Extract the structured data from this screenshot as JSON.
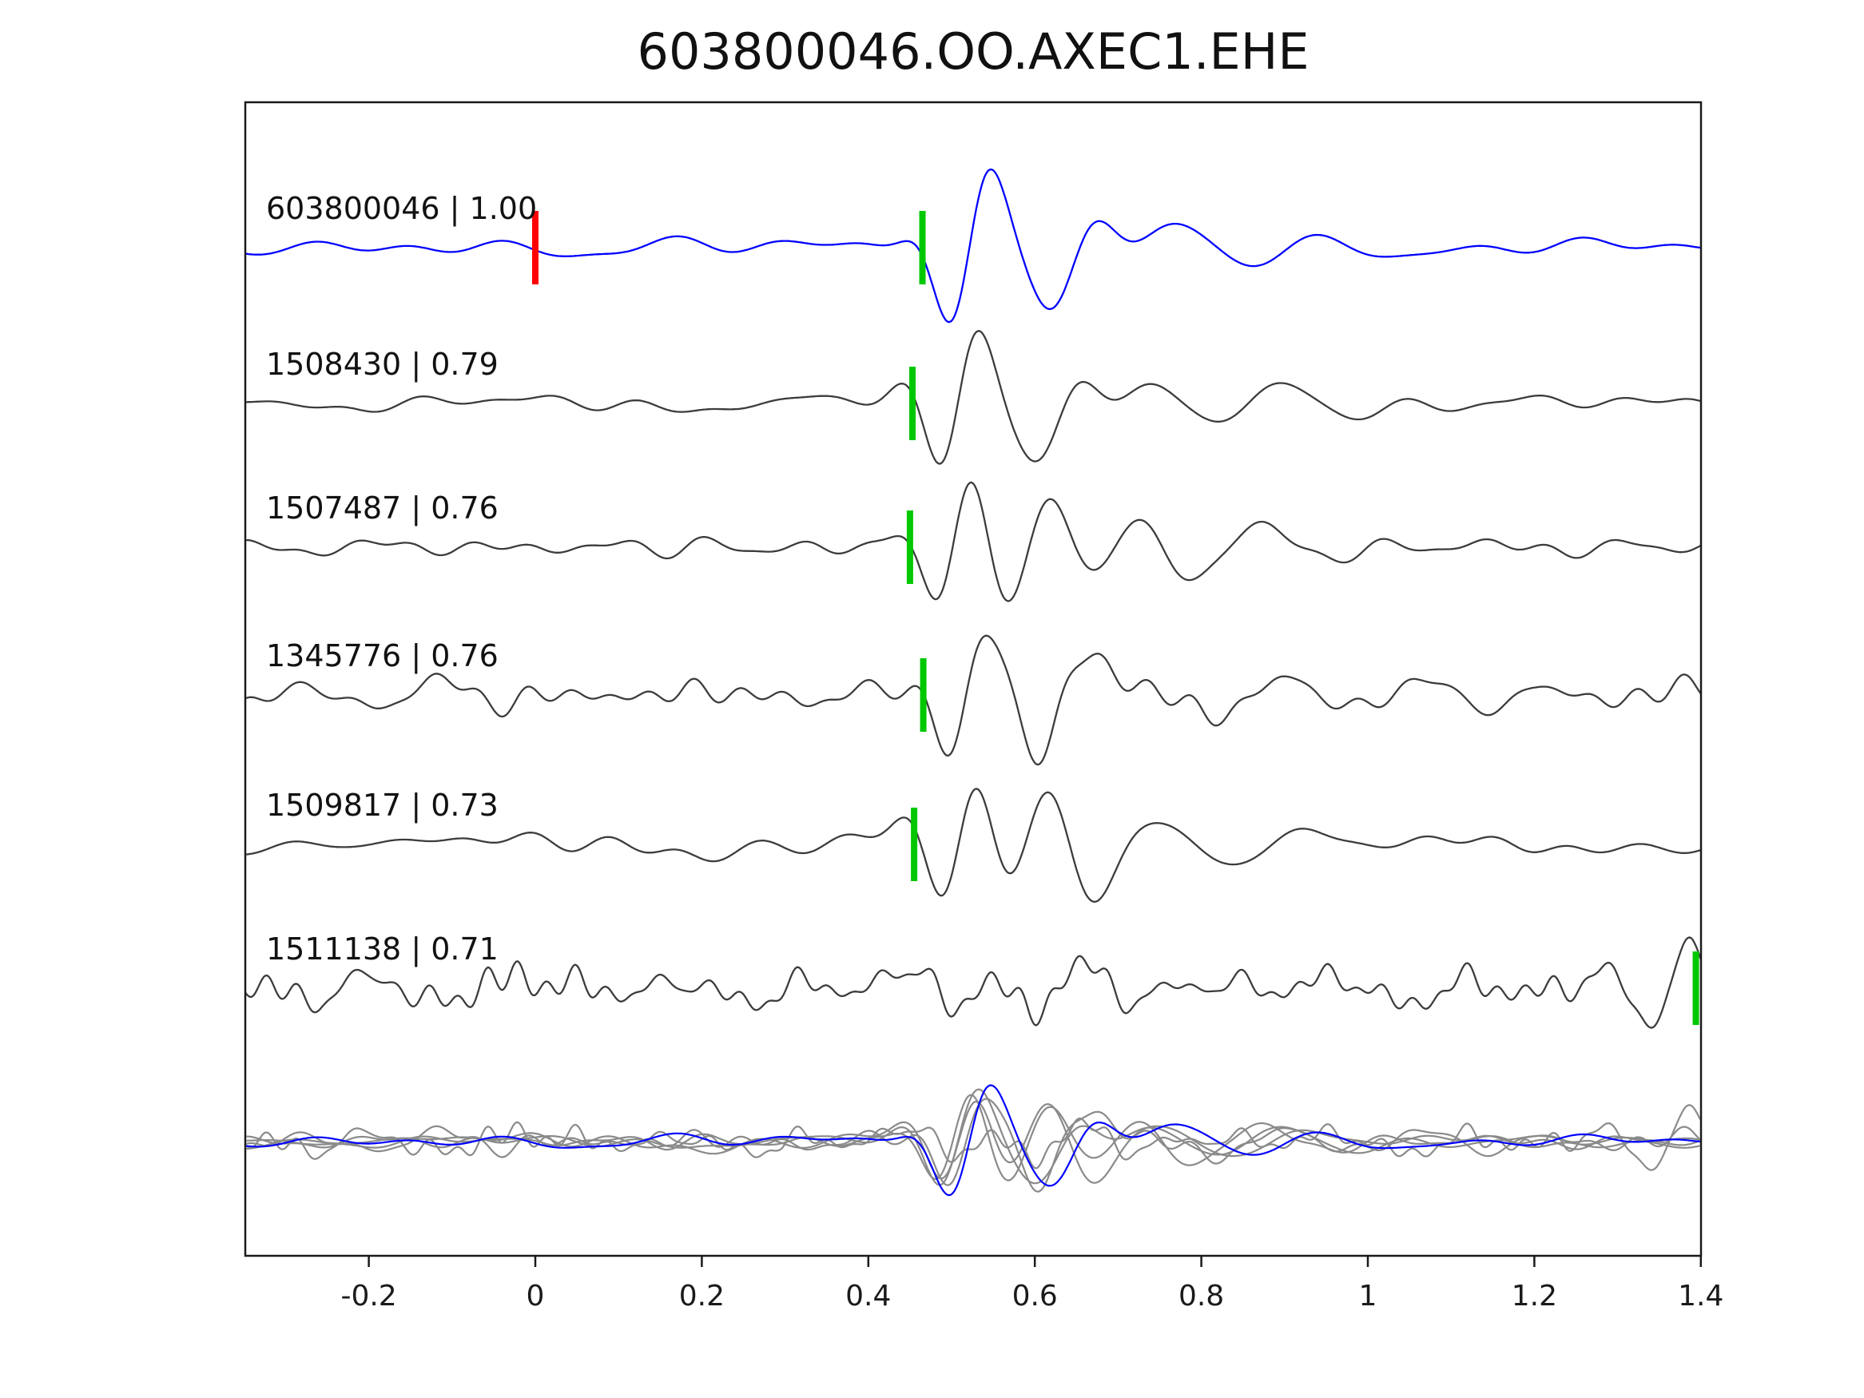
{
  "title": "603800046.OO.AXEC1.EHE",
  "chart_data": {
    "type": "line",
    "title": "603800046.OO.AXEC1.EHE",
    "subtitle": "",
    "xlabel": "",
    "ylabel": "",
    "grid": false,
    "legend": "none",
    "xlim": [
      -0.348,
      1.4
    ],
    "xticks": [
      "-0.2",
      "0",
      "0.2",
      "0.4",
      "0.6",
      "0.8",
      "1",
      "1.2",
      "1.4"
    ],
    "xtick_values": [
      -0.2,
      0,
      0.2,
      0.4,
      0.6,
      0.8,
      1.0,
      1.2,
      1.4
    ],
    "colors": {
      "master_trace": "#0000ff",
      "detection_trace": "#3c3c3c",
      "overlay_trace": "#8a8a8a",
      "pick_marker": "#00c800",
      "origin_marker": "#ff0000",
      "axis": "#1a1a1a"
    },
    "traces": [
      {
        "id": "603800046",
        "correlation": "1.00",
        "label": "603800046 | 1.00",
        "color": "#0000ff",
        "pick_time": 0.465,
        "pick_color": "#00c800",
        "origin_marker": {
          "time": 0.0,
          "color": "#ff0000"
        },
        "gen": {
          "seed": 101,
          "noise_amp": 11,
          "noise_fmax": 13,
          "event": {
            "t0": 0.465,
            "amp": -95,
            "freq": 9.5
          }
        }
      },
      {
        "id": "1508430",
        "correlation": "0.79",
        "label": "1508430 | 0.79",
        "color": "#3c3c3c",
        "pick_time": 0.453,
        "pick_color": "#00c800",
        "gen": {
          "seed": 202,
          "noise_amp": 11,
          "noise_fmax": 15,
          "event": {
            "t0": 0.453,
            "amp": -88,
            "freq": 9.0
          }
        }
      },
      {
        "id": "1507487",
        "correlation": "0.76",
        "label": "1507487 | 0.76",
        "color": "#3c3c3c",
        "pick_time": 0.45,
        "pick_color": "#00c800",
        "gen": {
          "seed": 303,
          "noise_amp": 12,
          "noise_fmax": 16,
          "event": {
            "t0": 0.45,
            "amp": -90,
            "freq": 9.2
          }
        }
      },
      {
        "id": "1345776",
        "correlation": "0.76",
        "label": "1345776 | 0.76",
        "color": "#3c3c3c",
        "pick_time": 0.466,
        "pick_color": "#00c800",
        "gen": {
          "seed": 404,
          "noise_amp": 18,
          "noise_fmax": 26,
          "event": {
            "t0": 0.466,
            "amp": -85,
            "freq": 8.8
          }
        }
      },
      {
        "id": "1509817",
        "correlation": "0.73",
        "label": "1509817 | 0.73",
        "color": "#3c3c3c",
        "pick_time": 0.455,
        "pick_color": "#00c800",
        "gen": {
          "seed": 505,
          "noise_amp": 12,
          "noise_fmax": 15,
          "event": {
            "t0": 0.455,
            "amp": -86,
            "freq": 9.0
          }
        }
      },
      {
        "id": "1511138",
        "correlation": "0.71",
        "label": "1511138 | 0.71",
        "color": "#3c3c3c",
        "pick_time": 1.394,
        "pick_color": "#00c800",
        "gen": {
          "seed": 606,
          "noise_amp": 26,
          "noise_fmax": 30,
          "event": {
            "t0": 0.47,
            "amp": -40,
            "freq": 9.0
          },
          "event2": {
            "t0": 1.3,
            "amp": -60,
            "freq": 8.0
          }
        }
      }
    ],
    "overlay": {
      "present": true,
      "scale": 0.72,
      "others_color": "#8a8a8a",
      "master_color": "#0000ff"
    }
  }
}
